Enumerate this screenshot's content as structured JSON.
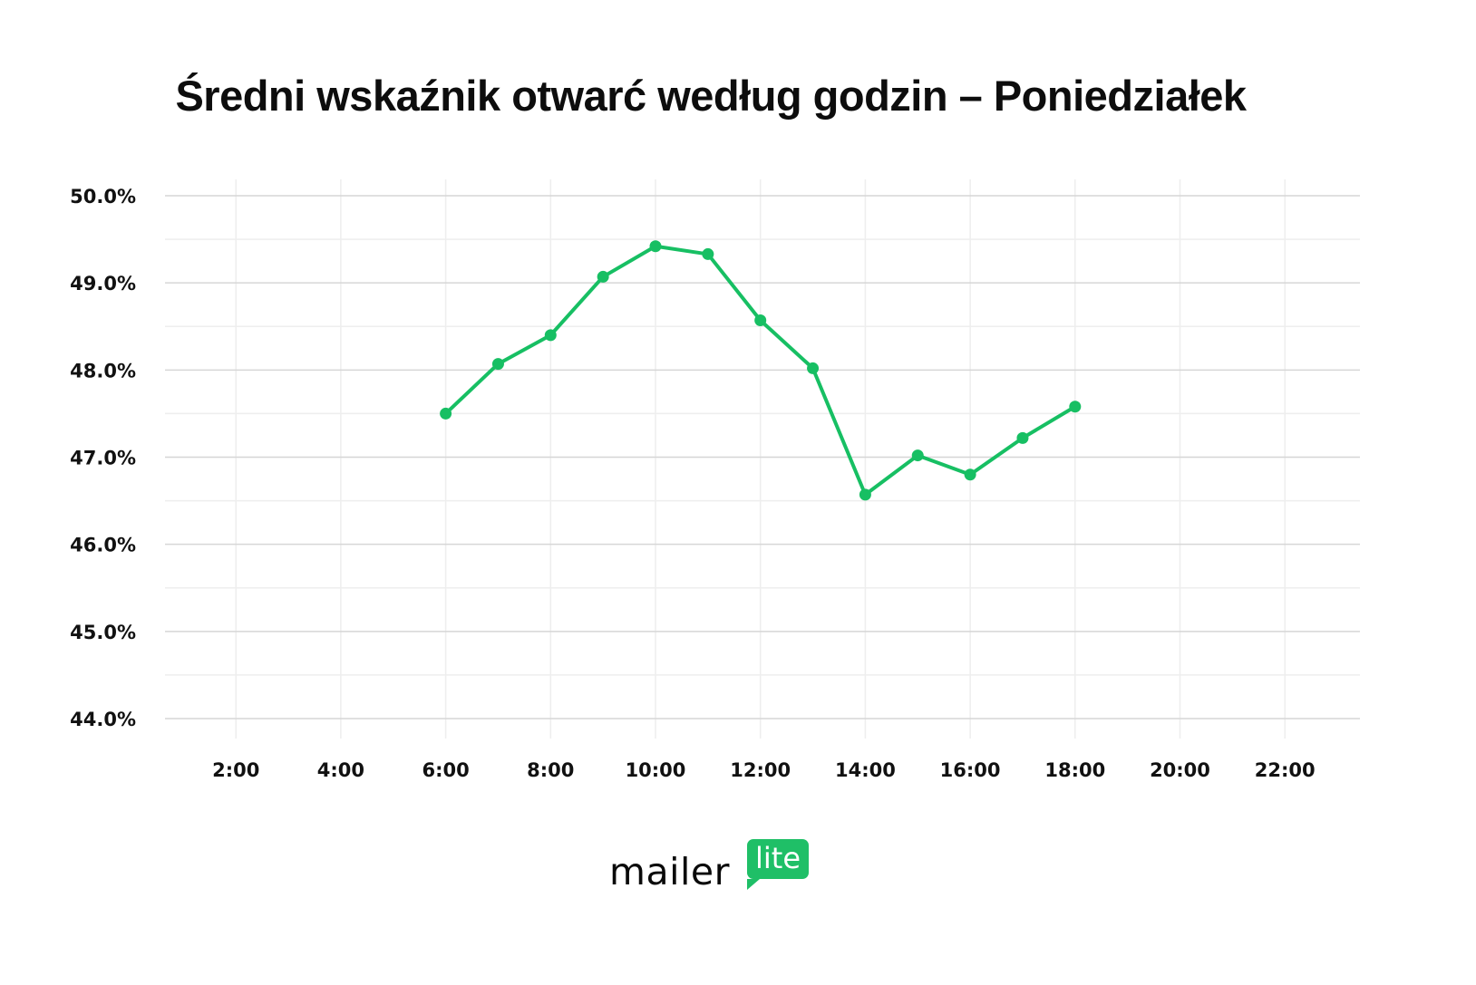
{
  "title": "Średni wskaźnik otwarć według godzin – Poniedziałek",
  "brand": {
    "word": "mailer",
    "badge": "lite",
    "color": "#1fbf67"
  },
  "colors": {
    "line": "#17bf63",
    "grid_major": "#d6d6d6",
    "grid_minor": "#eeeeee",
    "text": "#111111"
  },
  "chart_data": {
    "type": "line",
    "title": "Średni wskaźnik otwarć według godzin – Poniedziałek",
    "xlabel": "",
    "ylabel": "",
    "x_tick_labels": [
      "2:00",
      "4:00",
      "6:00",
      "8:00",
      "10:00",
      "12:00",
      "14:00",
      "16:00",
      "18:00",
      "20:00",
      "22:00"
    ],
    "y_tick_labels": [
      "50.0%",
      "49.0%",
      "48.0%",
      "47.0%",
      "46.0%",
      "45.0%",
      "44.0%"
    ],
    "ylim": [
      44.0,
      50.0
    ],
    "xlim": [
      0,
      23
    ],
    "grid": true,
    "legend": null,
    "series": [
      {
        "name": "Średni wskaźnik otwarć",
        "color": "#17bf63",
        "x": [
          "6:00",
          "7:00",
          "8:00",
          "9:00",
          "10:00",
          "11:00",
          "12:00",
          "13:00",
          "14:00",
          "15:00",
          "16:00",
          "17:00",
          "18:00"
        ],
        "hours": [
          6,
          7,
          8,
          9,
          10,
          11,
          12,
          13,
          14,
          15,
          16,
          17,
          18
        ],
        "values": [
          47.5,
          48.07,
          48.4,
          49.07,
          49.42,
          49.33,
          48.57,
          48.02,
          46.57,
          47.02,
          46.8,
          47.22,
          47.58
        ]
      }
    ]
  }
}
